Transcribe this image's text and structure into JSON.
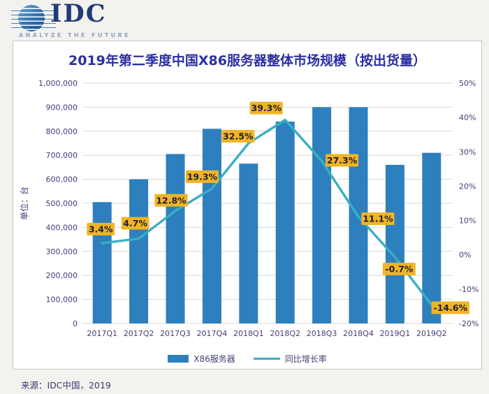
{
  "logo": {
    "name": "IDC",
    "tagline": "ANALYZE THE FUTURE"
  },
  "chart_data": {
    "type": "bar",
    "subtype": "bar+line combo, dual axis",
    "title": "2019年第二季度中国X86服务器整体市场规模（按出货量）",
    "categories": [
      "2017Q1",
      "2017Q2",
      "2017Q3",
      "2017Q4",
      "2018Q1",
      "2018Q2",
      "2018Q3",
      "2018Q4",
      "2019Q1",
      "2019Q2"
    ],
    "series": [
      {
        "name": "X86服务器",
        "type": "bar",
        "axis": "left",
        "color": "#2E7FBE",
        "values": [
          505000,
          600000,
          705000,
          810000,
          665000,
          840000,
          900000,
          900000,
          660000,
          710000
        ]
      },
      {
        "name": "同比增长率",
        "type": "line",
        "axis": "right",
        "color": "#3AAFC3",
        "values_pct": [
          3.4,
          4.7,
          12.8,
          19.3,
          32.5,
          39.3,
          27.3,
          11.1,
          -0.7,
          -14.6
        ],
        "point_labels": [
          "3.4%",
          "4.7%",
          "12.8%",
          "19.3%",
          "32.5%",
          "39.3%",
          "27.3%",
          "11.1%",
          "-0.7%",
          "-14.6%"
        ],
        "point_label_bg": "#F0B425",
        "point_label_text_color": "#212135"
      }
    ],
    "left_axis": {
      "title": "单位：台",
      "min": 0,
      "max": 1000000,
      "step": 100000,
      "tick_labels": [
        "1,000,000",
        "900,000",
        "800,000",
        "700,000",
        "600,000",
        "500,000",
        "400,000",
        "300,000",
        "200,000",
        "100,000",
        "0"
      ]
    },
    "right_axis": {
      "min": -20,
      "max": 50,
      "step": 10,
      "tick_labels": [
        "50%",
        "40%",
        "30%",
        "20%",
        "10%",
        "0%",
        "-10%",
        "-20%"
      ]
    },
    "grid": true,
    "grid_color": "#D8D8D8",
    "axis_text_color": "#3F3F78",
    "legend_position": "bottom"
  },
  "footer": {
    "source": "来源：IDC中国，2019"
  }
}
